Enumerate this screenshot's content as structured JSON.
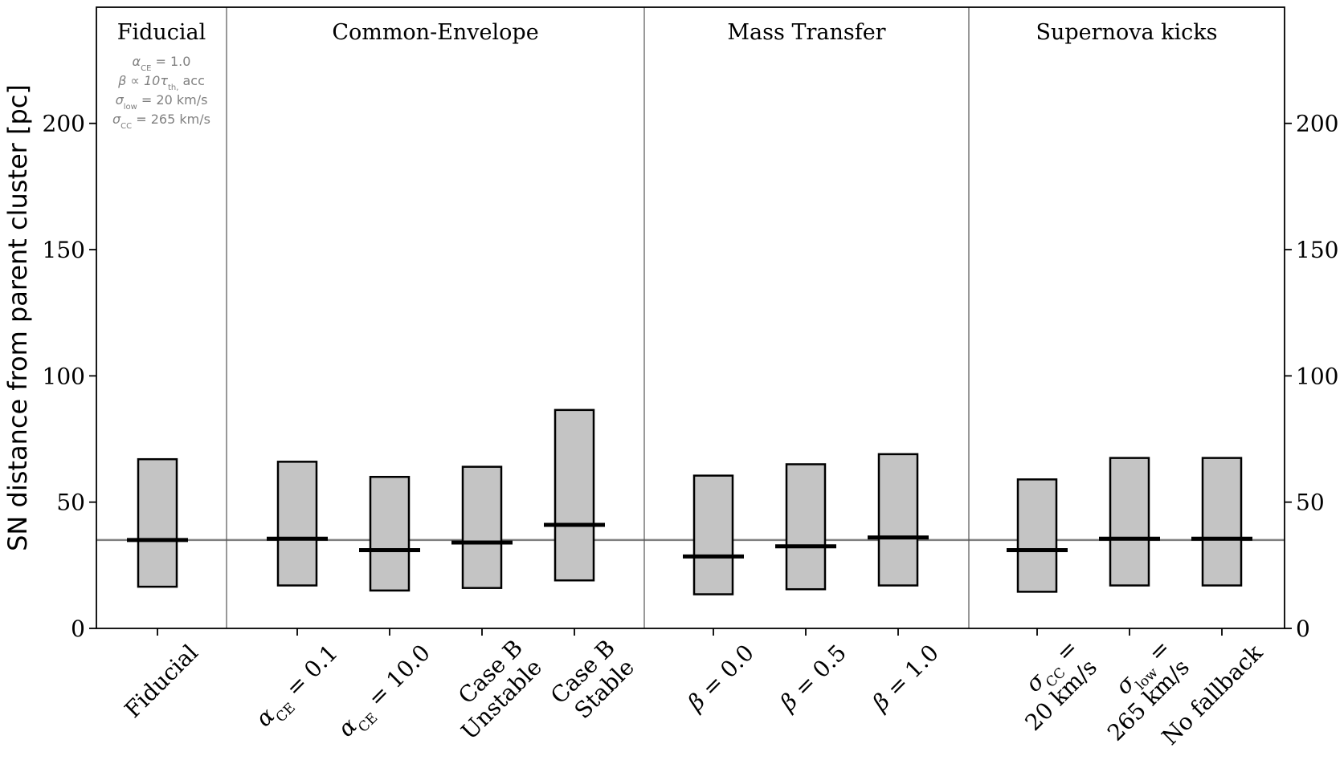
{
  "chart_data": {
    "type": "bar",
    "ylabel": "SN distance from parent cluster [pc]",
    "ylim": [
      0,
      246
    ],
    "yticks": [
      0,
      50,
      100,
      150,
      200
    ],
    "reference_line": 35,
    "colors": {
      "box_fill": "#c4c4c4",
      "box_stroke": "#000000",
      "reference": "#808080",
      "group_label": "#000000",
      "annotation": "#808080"
    },
    "groups": [
      {
        "title": "Fiducial",
        "start": 0,
        "end": 1
      },
      {
        "title": "Common-Envelope",
        "start": 1,
        "end": 5
      },
      {
        "title": "Mass Transfer",
        "start": 5,
        "end": 8
      },
      {
        "title": "Supernova kicks",
        "start": 8,
        "end": 11
      }
    ],
    "annotation": [
      "α_CE = 1.0",
      "β ∝ 10τ_th, acc",
      "σ_low = 20 km/s",
      "σ_CC = 265 km/s"
    ],
    "categories": [
      {
        "lines": [
          "Fiducial"
        ],
        "low": 16.5,
        "median": 35,
        "high": 67
      },
      {
        "lines": [
          "α_CE = 0.1"
        ],
        "low": 17,
        "median": 35.5,
        "high": 66
      },
      {
        "lines": [
          "α_CE = 10.0"
        ],
        "low": 15,
        "median": 31,
        "high": 60
      },
      {
        "lines": [
          "Case B",
          "Unstable"
        ],
        "low": 16,
        "median": 34,
        "high": 64
      },
      {
        "lines": [
          "Case B",
          "Stable"
        ],
        "low": 19,
        "median": 41,
        "high": 86.5
      },
      {
        "lines": [
          "β = 0.0"
        ],
        "low": 13.5,
        "median": 28.5,
        "high": 60.5
      },
      {
        "lines": [
          "β = 0.5"
        ],
        "low": 15.5,
        "median": 32.5,
        "high": 65
      },
      {
        "lines": [
          "β = 1.0"
        ],
        "low": 17,
        "median": 36,
        "high": 69
      },
      {
        "lines": [
          "σ_CC =",
          "20 km/s"
        ],
        "low": 14.5,
        "median": 31,
        "high": 59
      },
      {
        "lines": [
          "σ_low =",
          "265 km/s"
        ],
        "low": 17,
        "median": 35.5,
        "high": 67.5
      },
      {
        "lines": [
          "No fallback"
        ],
        "low": 17,
        "median": 35.5,
        "high": 67.5
      }
    ]
  }
}
